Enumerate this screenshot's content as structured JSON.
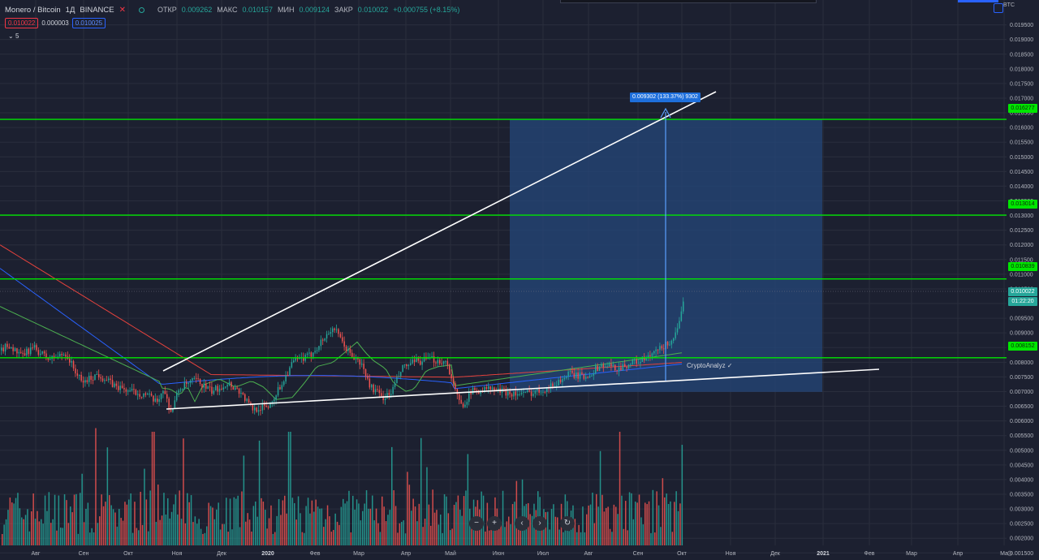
{
  "header": {
    "symbol": "Monero / Bitcoin",
    "interval": "1Д",
    "exchange": "BINANCE",
    "open_label": "ОТКР",
    "open": "0.009262",
    "high_label": "МАКС",
    "high": "0.010157",
    "low_label": "МИН",
    "low": "0.009124",
    "close_label": "ЗАКР",
    "close": "0.010022",
    "change": "+0.000755 (+8.15%)",
    "bid": "0.010022",
    "spread": "0.000003",
    "ask": "0.010025",
    "indicator_toggle": "5",
    "currency": "BTC"
  },
  "colors": {
    "background": "#1c2030",
    "grid": "#2a2e3d",
    "up": "#26a69a",
    "down": "#ef5350",
    "level": "#00e600",
    "projection_box": "#24477a",
    "measure": "#1e6fdc"
  },
  "chart_data": {
    "type": "candlestick",
    "symbol": "XMR/BTC",
    "y_axis": {
      "range": [
        0.00115,
        0.0195
      ],
      "ticks": [
        "0.019500",
        "0.019000",
        "0.018500",
        "0.018000",
        "0.017500",
        "0.017000",
        "0.016500",
        "0.016000",
        "0.015500",
        "0.015000",
        "0.014500",
        "0.014000",
        "0.013500",
        "0.013000",
        "0.012500",
        "0.012000",
        "0.011500",
        "0.011000",
        "0.010500",
        "0.010000",
        "0.009500",
        "0.009000",
        "0.008500",
        "0.008000",
        "0.007500",
        "0.007000",
        "0.006500",
        "0.006000",
        "0.005500",
        "0.005000",
        "0.004500",
        "0.004000",
        "0.003500",
        "0.003000",
        "0.002500",
        "0.002000",
        "0.001500"
      ]
    },
    "x_axis": {
      "labels": [
        "Авг",
        "Сен",
        "Окт",
        "Ноя",
        "Дек",
        "2020",
        "Фев",
        "Мар",
        "Апр",
        "Май",
        "Июн",
        "Июл",
        "Авг",
        "Сен",
        "Окт",
        "Ноя",
        "Дек",
        "2021",
        "Фев",
        "Мар",
        "Апр",
        "Ма"
      ],
      "bold_labels": [
        "2020",
        "2021"
      ]
    },
    "price_path": [
      [
        0,
        0.0084
      ],
      [
        10,
        0.0086
      ],
      [
        25,
        0.0082
      ],
      [
        40,
        0.0085
      ],
      [
        60,
        0.0081
      ],
      [
        80,
        0.0083
      ],
      [
        100,
        0.0073
      ],
      [
        120,
        0.0076
      ],
      [
        140,
        0.0072
      ],
      [
        160,
        0.007
      ],
      [
        180,
        0.0069
      ],
      [
        192,
        0.0066
      ],
      [
        200,
        0.0071
      ],
      [
        210,
        0.0063
      ],
      [
        220,
        0.0071
      ],
      [
        240,
        0.0074
      ],
      [
        260,
        0.007
      ],
      [
        280,
        0.0073
      ],
      [
        295,
        0.007
      ],
      [
        310,
        0.0064
      ],
      [
        330,
        0.0065
      ],
      [
        345,
        0.0072
      ],
      [
        360,
        0.008
      ],
      [
        380,
        0.0082
      ],
      [
        395,
        0.0087
      ],
      [
        410,
        0.0092
      ],
      [
        420,
        0.0087
      ],
      [
        430,
        0.0083
      ],
      [
        445,
        0.0079
      ],
      [
        455,
        0.0072
      ],
      [
        470,
        0.0068
      ],
      [
        480,
        0.0069
      ],
      [
        495,
        0.0078
      ],
      [
        510,
        0.008
      ],
      [
        530,
        0.0081
      ],
      [
        550,
        0.008
      ],
      [
        560,
        0.007
      ],
      [
        568,
        0.0065
      ],
      [
        580,
        0.007
      ],
      [
        600,
        0.0071
      ],
      [
        620,
        0.007
      ],
      [
        640,
        0.0069
      ],
      [
        660,
        0.007
      ],
      [
        680,
        0.0072
      ],
      [
        700,
        0.0076
      ],
      [
        720,
        0.0075
      ],
      [
        740,
        0.0079
      ],
      [
        760,
        0.0078
      ],
      [
        780,
        0.008
      ],
      [
        795,
        0.0081
      ],
      [
        810,
        0.0084
      ],
      [
        825,
        0.0087
      ],
      [
        835,
        0.0091
      ],
      [
        841,
        0.01002
      ]
    ],
    "last_price": "0.010022",
    "countdown": "01:22:20",
    "horizontal_levels": [
      "0.016277",
      "0.013014",
      "0.010839",
      "0.008152"
    ],
    "trendlines": {
      "upper": {
        "from": [
          "Окт",
          0.00725
        ],
        "to": [
          "Окт",
          0.01685
        ]
      },
      "lower": {
        "from": [
          "Окт",
          0.00596
        ],
        "to": [
          "2021",
          0.00734
        ]
      }
    },
    "measure": {
      "from": 0.00699,
      "to": 0.01625,
      "label": "0.009302 (133.37%) 9302"
    },
    "moving_averages": 3,
    "volume_bars": true
  },
  "annotations": {
    "author": "CryptoAnalyz ✓"
  },
  "controls": {
    "zoom_out": "−",
    "zoom_in": "+",
    "scroll_left": "‹",
    "scroll_right": "›",
    "reset": "↻"
  }
}
